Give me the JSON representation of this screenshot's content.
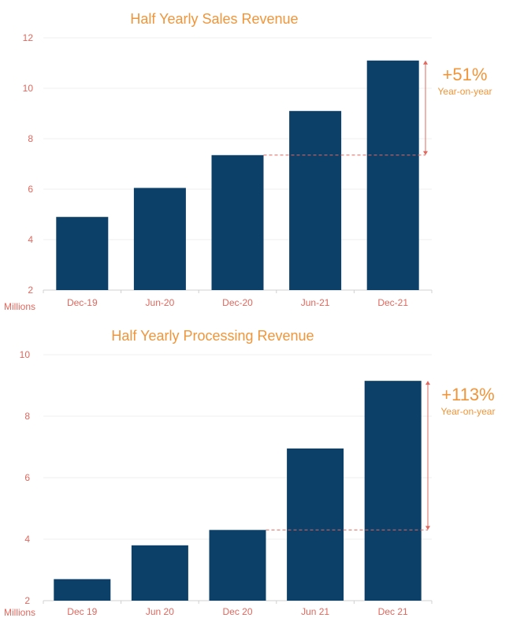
{
  "chart_data": [
    {
      "type": "bar",
      "title": "Half Yearly Sales Revenue",
      "units_label": "Millions",
      "categories": [
        "Dec-19",
        "Jun-20",
        "Dec-20",
        "Jun-21",
        "Dec-21"
      ],
      "values": [
        4.9,
        6.05,
        7.35,
        9.1,
        11.1
      ],
      "ylim": [
        2,
        12
      ],
      "yticks": [
        2,
        4,
        6,
        8,
        10,
        12
      ],
      "grid": true,
      "bar_color": "#0C4068",
      "annotation": {
        "text": "+51%",
        "subtext": "Year-on-year",
        "from_index": 2,
        "to_index": 4
      }
    },
    {
      "type": "bar",
      "title": "Half Yearly Processing Revenue",
      "units_label": "Millions",
      "categories": [
        "Dec 19",
        "Jun 20",
        "Dec 20",
        "Jun 21",
        "Dec 21"
      ],
      "values": [
        2.7,
        3.8,
        4.3,
        6.95,
        9.15
      ],
      "ylim": [
        2,
        10
      ],
      "yticks": [
        2,
        4,
        6,
        8,
        10
      ],
      "grid": true,
      "bar_color": "#0C4068",
      "annotation": {
        "text": "+113%",
        "subtext": "Year-on-year",
        "from_index": 2,
        "to_index": 4
      }
    }
  ],
  "colors": {
    "title": "#F0953A",
    "tick_label": "#E0685E",
    "gridline": "#EFEFEF",
    "axis": "#D0D0D0",
    "annotation_line": "#E0685E"
  }
}
